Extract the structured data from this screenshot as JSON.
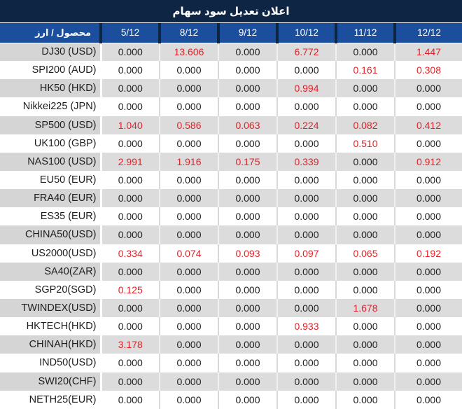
{
  "title": "اعلان تعديل سود سهام",
  "colors": {
    "navy": "#0e2544",
    "header-blue": "#1b4f9e",
    "row-gray": "#dcdcdc",
    "label-gray": "#d5d5d5",
    "sep-on-white": "#d9d9d9",
    "sep-on-gray": "#f0f0f0",
    "red": "#e32128",
    "text-dark": "#1d1d1d"
  },
  "table": {
    "product_header": "محصول / ارز",
    "date_headers": [
      "5/12",
      "8/12",
      "9/12",
      "10/12",
      "11/12",
      "12/12"
    ],
    "rows": [
      {
        "label": "DJ30 (USD)",
        "values": [
          "0.000",
          "13.606",
          "0.000",
          "6.772",
          "0.000",
          "1.447"
        ],
        "red": [
          false,
          true,
          false,
          true,
          false,
          true
        ]
      },
      {
        "label": "SPI200 (AUD)",
        "values": [
          "0.000",
          "0.000",
          "0.000",
          "0.000",
          "0.161",
          "0.308"
        ],
        "red": [
          false,
          false,
          false,
          false,
          true,
          true
        ]
      },
      {
        "label": "HK50 (HKD)",
        "values": [
          "0.000",
          "0.000",
          "0.000",
          "0.994",
          "0.000",
          "0.000"
        ],
        "red": [
          false,
          false,
          false,
          true,
          false,
          false
        ]
      },
      {
        "label": "Nikkei225 (JPN)",
        "values": [
          "0.000",
          "0.000",
          "0.000",
          "0.000",
          "0.000",
          "0.000"
        ],
        "red": [
          false,
          false,
          false,
          false,
          false,
          false
        ]
      },
      {
        "label": "SP500 (USD)",
        "values": [
          "1.040",
          "0.586",
          "0.063",
          "0.224",
          "0.082",
          "0.412"
        ],
        "red": [
          true,
          true,
          true,
          true,
          true,
          true
        ]
      },
      {
        "label": "UK100 (GBP)",
        "values": [
          "0.000",
          "0.000",
          "0.000",
          "0.000",
          "0.510",
          "0.000"
        ],
        "red": [
          false,
          false,
          false,
          false,
          true,
          false
        ]
      },
      {
        "label": "NAS100 (USD)",
        "values": [
          "2.991",
          "1.916",
          "0.175",
          "0.339",
          "0.000",
          "0.912"
        ],
        "red": [
          true,
          true,
          true,
          true,
          false,
          true
        ]
      },
      {
        "label": "EU50 (EUR)",
        "values": [
          "0.000",
          "0.000",
          "0.000",
          "0.000",
          "0.000",
          "0.000"
        ],
        "red": [
          false,
          false,
          false,
          false,
          false,
          false
        ]
      },
      {
        "label": "FRA40 (EUR)",
        "values": [
          "0.000",
          "0.000",
          "0.000",
          "0.000",
          "0.000",
          "0.000"
        ],
        "red": [
          false,
          false,
          false,
          false,
          false,
          false
        ]
      },
      {
        "label": "ES35 (EUR)",
        "values": [
          "0.000",
          "0.000",
          "0.000",
          "0.000",
          "0.000",
          "0.000"
        ],
        "red": [
          false,
          false,
          false,
          false,
          false,
          false
        ]
      },
      {
        "label": "CHINA50(USD)",
        "values": [
          "0.000",
          "0.000",
          "0.000",
          "0.000",
          "0.000",
          "0.000"
        ],
        "red": [
          false,
          false,
          false,
          false,
          false,
          false
        ]
      },
      {
        "label": "US2000(USD)",
        "values": [
          "0.334",
          "0.074",
          "0.093",
          "0.097",
          "0.065",
          "0.192"
        ],
        "red": [
          true,
          true,
          true,
          true,
          true,
          true
        ]
      },
      {
        "label": "SA40(ZAR)",
        "values": [
          "0.000",
          "0.000",
          "0.000",
          "0.000",
          "0.000",
          "0.000"
        ],
        "red": [
          false,
          false,
          false,
          false,
          false,
          false
        ]
      },
      {
        "label": "SGP20(SGD)",
        "values": [
          "0.125",
          "0.000",
          "0.000",
          "0.000",
          "0.000",
          "0.000"
        ],
        "red": [
          true,
          false,
          false,
          false,
          false,
          false
        ]
      },
      {
        "label": "TWINDEX(USD)",
        "values": [
          "0.000",
          "0.000",
          "0.000",
          "0.000",
          "1.678",
          "0.000"
        ],
        "red": [
          false,
          false,
          false,
          false,
          true,
          false
        ]
      },
      {
        "label": "HKTECH(HKD)",
        "values": [
          "0.000",
          "0.000",
          "0.000",
          "0.933",
          "0.000",
          "0.000"
        ],
        "red": [
          false,
          false,
          false,
          true,
          false,
          false
        ]
      },
      {
        "label": "CHINAH(HKD)",
        "values": [
          "3.178",
          "0.000",
          "0.000",
          "0.000",
          "0.000",
          "0.000"
        ],
        "red": [
          true,
          false,
          false,
          false,
          false,
          false
        ]
      },
      {
        "label": "IND50(USD)",
        "values": [
          "0.000",
          "0.000",
          "0.000",
          "0.000",
          "0.000",
          "0.000"
        ],
        "red": [
          false,
          false,
          false,
          false,
          false,
          false
        ]
      },
      {
        "label": "SWI20(CHF)",
        "values": [
          "0.000",
          "0.000",
          "0.000",
          "0.000",
          "0.000",
          "0.000"
        ],
        "red": [
          false,
          false,
          false,
          false,
          false,
          false
        ]
      },
      {
        "label": "NETH25(EUR)",
        "values": [
          "0.000",
          "0.000",
          "0.000",
          "0.000",
          "0.000",
          "0.000"
        ],
        "red": [
          false,
          false,
          false,
          false,
          false,
          false
        ]
      }
    ]
  }
}
